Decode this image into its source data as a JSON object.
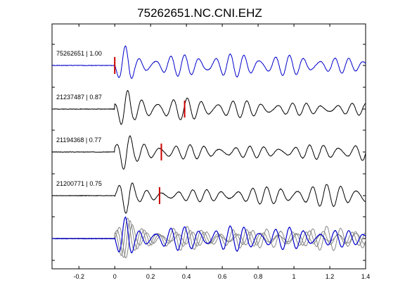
{
  "chart_data": {
    "type": "line",
    "title": "75262651.NC.CNI.EHZ",
    "xlabel": "",
    "ylabel": "",
    "xlim": [
      -0.35,
      1.4
    ],
    "x_ticks": [
      -0.2,
      0,
      0.2,
      0.4,
      0.6,
      0.8,
      1,
      1.2,
      1.4
    ],
    "x_tick_labels": [
      "-0.2",
      "0",
      "0.2",
      "0.4",
      "0.6",
      "0.8",
      "1",
      "1.2",
      "1.4"
    ],
    "grid": false,
    "colors": {
      "template": "#0000cc",
      "match": "#000000",
      "overlay": "#888888",
      "pick": "#cc0000"
    },
    "traces": [
      {
        "id": "75262651",
        "cc": "1.00",
        "label": "75262651 | 1.00",
        "pick_time": 0.0,
        "color": "#0000cc",
        "seed": 1
      },
      {
        "id": "21237487",
        "cc": "0.87",
        "label": "21237487 | 0.87",
        "pick_time": 0.39,
        "color": "#000000",
        "seed": 2
      },
      {
        "id": "21194368",
        "cc": "0.77",
        "label": "21194368 | 0.77",
        "pick_time": 0.26,
        "color": "#000000",
        "seed": 3
      },
      {
        "id": "21200771",
        "cc": "0.75",
        "label": "21200771 | 0.75",
        "pick_time": 0.25,
        "color": "#000000",
        "seed": 4
      }
    ],
    "overlay": {
      "description_hidden": true
    }
  }
}
